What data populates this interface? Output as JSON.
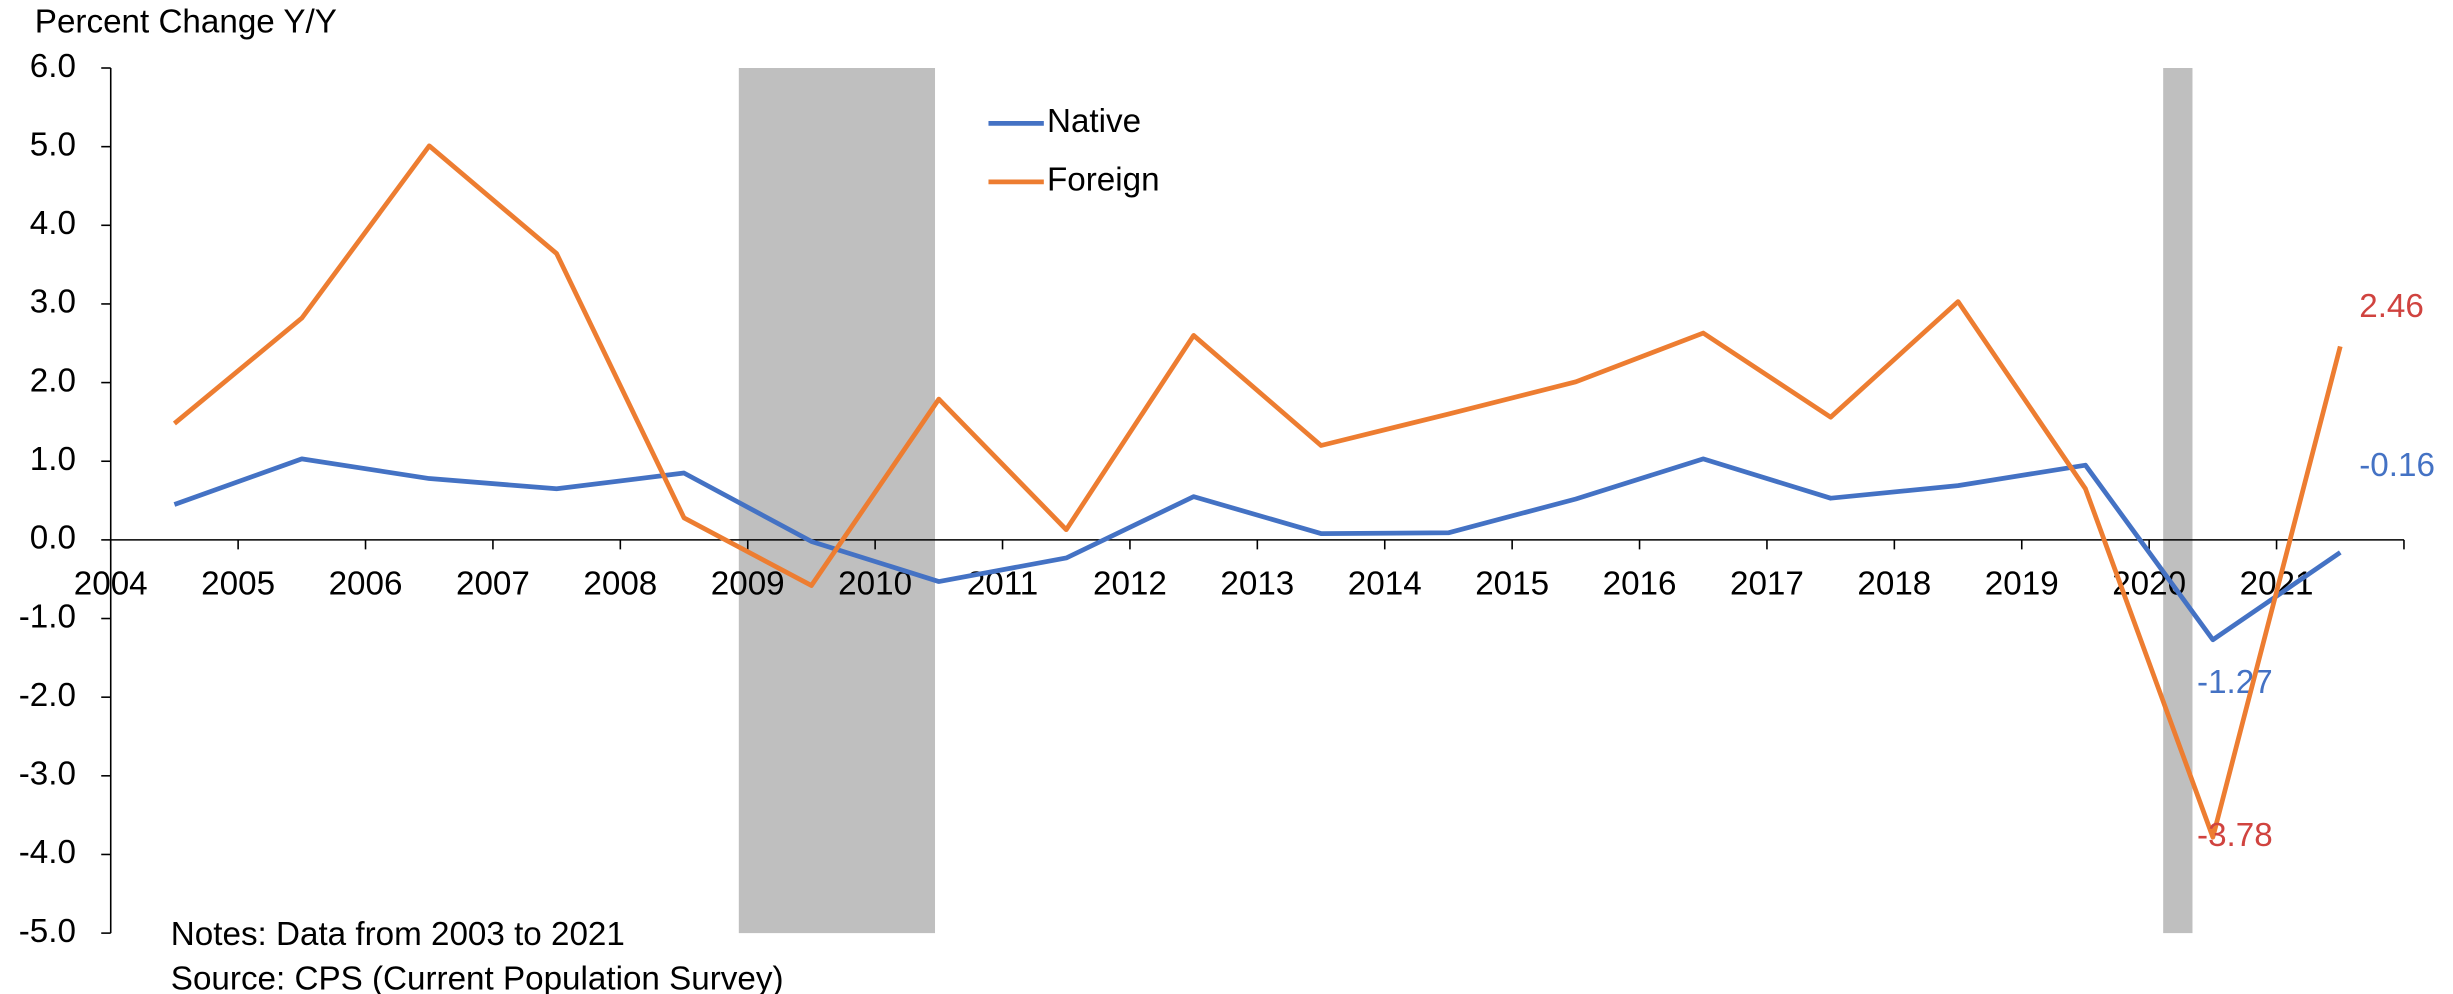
{
  "chart_data": {
    "type": "line",
    "y_axis_label": "Percent Change Y/Y",
    "categories": [
      "2004",
      "2005",
      "2006",
      "2007",
      "2008",
      "2009",
      "2010",
      "2011",
      "2012",
      "2013",
      "2014",
      "2015",
      "2016",
      "2017",
      "2018",
      "2019",
      "2020",
      "2021"
    ],
    "series": [
      {
        "name": "Native",
        "color": "#4472c4",
        "label_color": "#4472c4",
        "values": [
          0.45,
          1.03,
          0.78,
          0.65,
          0.85,
          -0.02,
          -0.53,
          -0.23,
          0.55,
          0.08,
          0.09,
          0.52,
          1.03,
          0.53,
          0.69,
          0.95,
          -1.27,
          -0.16
        ],
        "labeled_points": [
          16,
          17
        ]
      },
      {
        "name": "Foreign",
        "color": "#ed7d31",
        "label_color": "#d0433f",
        "values": [
          1.48,
          2.82,
          5.01,
          3.64,
          0.28,
          -0.58,
          1.79,
          0.13,
          2.6,
          1.2,
          1.6,
          2.01,
          2.63,
          1.56,
          3.03,
          0.65,
          -3.78,
          2.46
        ],
        "labeled_points": [
          16,
          17
        ]
      }
    ],
    "shaded_regions": [
      {
        "start": 4.93,
        "end": 6.47
      },
      {
        "start": 16.11,
        "end": 16.34
      }
    ],
    "shade_color": "#bfbfbf",
    "ylim": [
      -5,
      6
    ],
    "yticks": [
      {
        "value": -5,
        "label": "-5.0"
      },
      {
        "value": -4,
        "label": "-4.0"
      },
      {
        "value": -3,
        "label": "-3.0"
      },
      {
        "value": -2,
        "label": "-2.0"
      },
      {
        "value": -1,
        "label": "-1.0"
      },
      {
        "value": 0,
        "label": "0.0"
      },
      {
        "value": 1,
        "label": "1.0"
      },
      {
        "value": 2,
        "label": "2.0"
      },
      {
        "value": 3,
        "label": "3.0"
      },
      {
        "value": 4,
        "label": "4.0"
      },
      {
        "value": 5,
        "label": "5.0"
      },
      {
        "value": 6,
        "label": "6.0"
      }
    ],
    "notes": [
      "Notes: Data from 2003 to 2021",
      "Source: CPS (Current Population Survey)"
    ],
    "legend": "top-center"
  }
}
